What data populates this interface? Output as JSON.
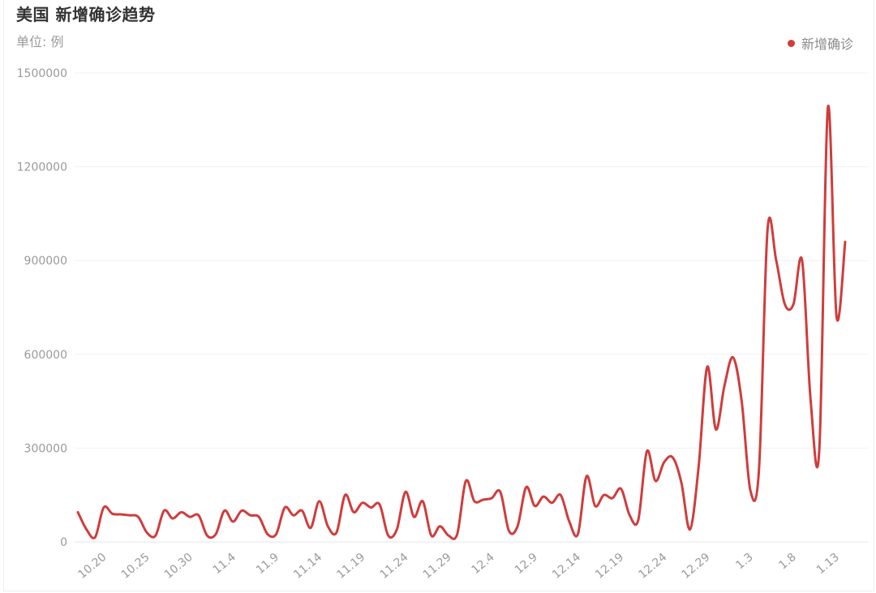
{
  "header": {
    "title": "美国 新增确诊趋势",
    "unit": "单位: 例"
  },
  "legend": {
    "label": "新增确诊"
  },
  "colors": {
    "line": "#d03c3c",
    "grid": "#f1f1f1",
    "axis_text": "#9a9a9a"
  },
  "chart_data": {
    "type": "line",
    "title": "美国 新增确诊趋势",
    "ylabel": "单位: 例",
    "xlabel": "",
    "ylim": [
      0,
      1500000
    ],
    "yticks": [
      0,
      300000,
      600000,
      900000,
      1200000,
      1500000
    ],
    "x_tick_labels": [
      "10.20",
      "10.25",
      "10.30",
      "11.4",
      "11.9",
      "11.14",
      "11.19",
      "11.24",
      "11.29",
      "12.4",
      "12.9",
      "12.14",
      "12.19",
      "12.24",
      "12.29",
      "1.3",
      "1.8",
      "1.13"
    ],
    "grid": true,
    "legend_position": "top-right",
    "series": [
      {
        "name": "新增确诊",
        "start_date": "10.17",
        "values": [
          95000,
          40000,
          15000,
          110000,
          90000,
          88000,
          85000,
          80000,
          30000,
          20000,
          100000,
          75000,
          95000,
          80000,
          85000,
          20000,
          25000,
          100000,
          65000,
          100000,
          85000,
          80000,
          25000,
          25000,
          110000,
          85000,
          100000,
          45000,
          130000,
          50000,
          30000,
          150000,
          95000,
          125000,
          110000,
          120000,
          20000,
          40000,
          160000,
          80000,
          130000,
          20000,
          50000,
          20000,
          25000,
          195000,
          130000,
          135000,
          140000,
          160000,
          35000,
          50000,
          175000,
          115000,
          145000,
          125000,
          150000,
          65000,
          25000,
          210000,
          115000,
          150000,
          140000,
          170000,
          85000,
          70000,
          290000,
          195000,
          255000,
          270000,
          190000,
          40000,
          240000,
          560000,
          360000,
          500000,
          590000,
          450000,
          165000,
          230000,
          1000000,
          900000,
          760000,
          760000,
          900000,
          450000,
          295000,
          1390000,
          720000,
          960000
        ]
      }
    ]
  }
}
